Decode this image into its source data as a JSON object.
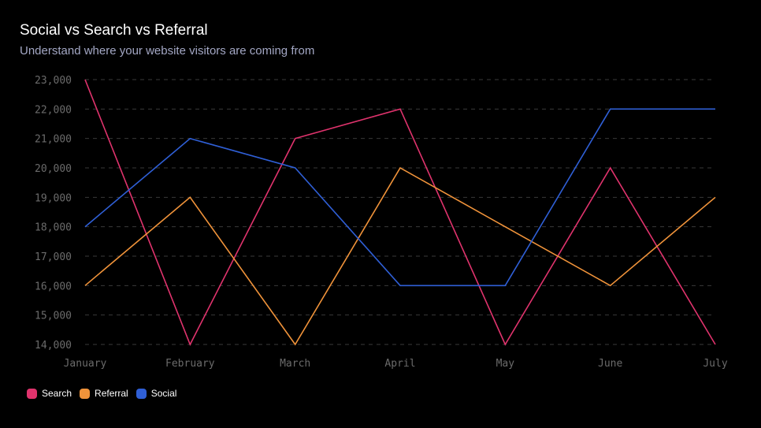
{
  "header": {
    "title": "Social vs Search vs Referral",
    "subtitle": "Understand where your website visitors are coming from"
  },
  "chart_data": {
    "type": "line",
    "title": "Social vs Search vs Referral",
    "subtitle": "Understand where your website visitors are coming from",
    "categories": [
      "January",
      "February",
      "March",
      "April",
      "May",
      "June",
      "July"
    ],
    "series": [
      {
        "name": "Search",
        "color": "#e0336d",
        "values": [
          23000,
          14000,
          21000,
          22000,
          14000,
          20000,
          14000
        ]
      },
      {
        "name": "Referral",
        "color": "#f0933a",
        "values": [
          16000,
          19000,
          14000,
          20000,
          18000,
          16000,
          19000
        ]
      },
      {
        "name": "Social",
        "color": "#2f5fd6",
        "values": [
          18000,
          21000,
          20000,
          16000,
          16000,
          22000,
          22000
        ]
      }
    ],
    "ylim": [
      14000,
      23000
    ],
    "yticks": [
      14000,
      15000,
      16000,
      17000,
      18000,
      19000,
      20000,
      21000,
      22000,
      23000
    ],
    "ytick_labels": [
      "14,000",
      "15,000",
      "16,000",
      "17,000",
      "18,000",
      "19,000",
      "20,000",
      "21,000",
      "22,000",
      "23,000"
    ],
    "xlabel": "",
    "ylabel": "",
    "grid": true,
    "legend_position": "bottom-left"
  }
}
